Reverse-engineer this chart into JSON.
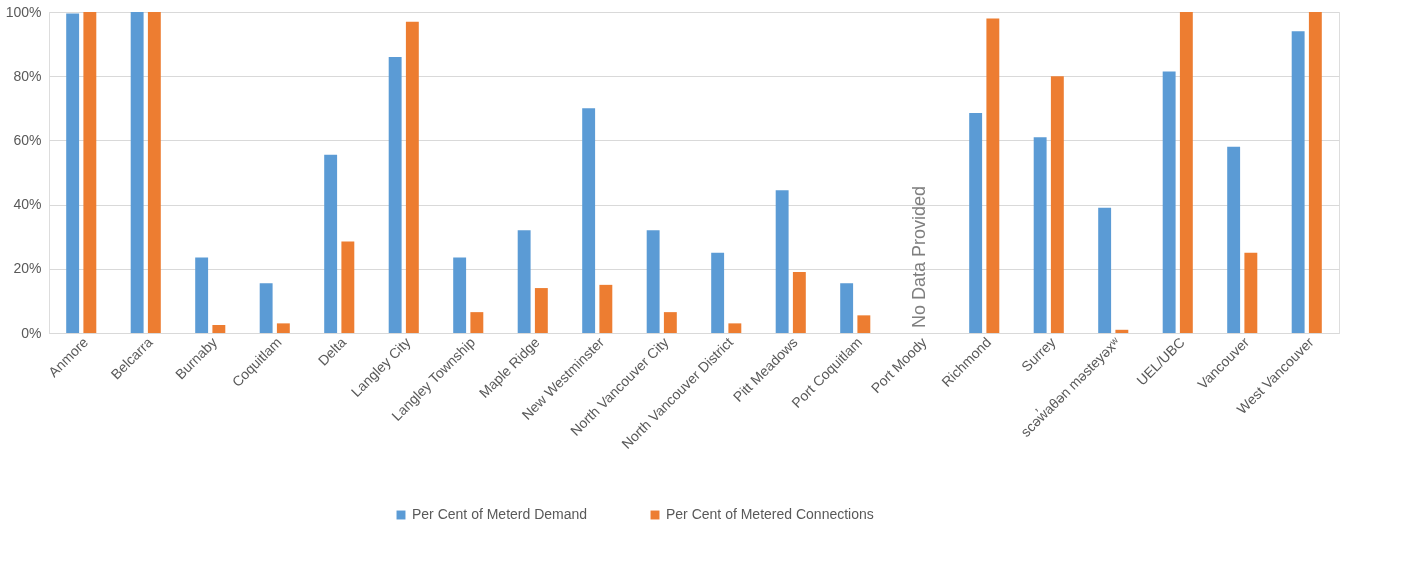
{
  "chart_data": {
    "type": "bar",
    "categories": [
      "Anmore",
      "Belcarra",
      "Burnaby",
      "Coquitlam",
      "Delta",
      "Langley City",
      "Langley Township",
      "Maple Ridge",
      "New Westminster",
      "North Vancouver City",
      "North Vancouver District",
      "Pitt Meadows",
      "Port Coquitlam",
      "Port Moody",
      "Richmond",
      "Surrey",
      "scəw̓aθən məsteyəxʷ",
      "UEL/UBC",
      "Vancouver",
      "West Vancouver"
    ],
    "series": [
      {
        "name": "Per Cent of Meterd Demand",
        "color": "#5b9bd5",
        "values": [
          99.5,
          100,
          23.5,
          15.5,
          55.5,
          86,
          23.5,
          32,
          70,
          32,
          25,
          44.5,
          15.5,
          null,
          68.5,
          61,
          39,
          81.5,
          58,
          94
        ]
      },
      {
        "name": "Per Cent  of Metered Connections",
        "color": "#ed7d31",
        "values": [
          100,
          100,
          2.5,
          3,
          28.5,
          97,
          6.5,
          14,
          15,
          6.5,
          3,
          19,
          5.5,
          null,
          98,
          80,
          1,
          100,
          25,
          100
        ]
      }
    ],
    "ylim": [
      0,
      100
    ],
    "yticks": [
      {
        "value": 0,
        "label": "0%"
      },
      {
        "value": 20,
        "label": "20%"
      },
      {
        "value": 40,
        "label": "40%"
      },
      {
        "value": 60,
        "label": "60%"
      },
      {
        "value": 80,
        "label": "80%"
      },
      {
        "value": 100,
        "label": "100%"
      }
    ],
    "annotations": [
      "No Data Provided"
    ],
    "grid": "y",
    "legend": "bottom"
  }
}
